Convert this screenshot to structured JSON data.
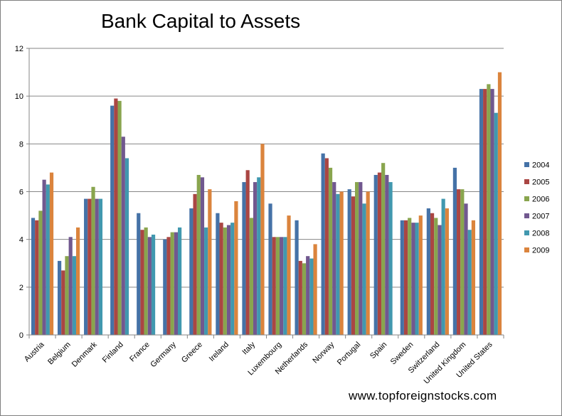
{
  "chart_data": {
    "type": "bar",
    "title": "Bank Capital to Assets",
    "xlabel": "",
    "ylabel": "",
    "ylim": [
      0,
      12
    ],
    "yticks": [
      0,
      2,
      4,
      6,
      8,
      10,
      12
    ],
    "grid": true,
    "legend_position": "right",
    "categories": [
      "Austria",
      "Belgium",
      "Denmark",
      "Finland",
      "France",
      "Germany",
      "Greece",
      "Ireland",
      "Italy",
      "Luxembourg",
      "Netherlands",
      "Norway",
      "Portugal",
      "Spain",
      "Sweden",
      "Switzerland",
      "United Kingdom",
      "United States"
    ],
    "series": [
      {
        "name": "2004",
        "color": "#4572A7",
        "values": [
          4.9,
          3.1,
          5.7,
          9.6,
          5.1,
          4.0,
          5.3,
          5.1,
          6.4,
          5.5,
          4.8,
          7.6,
          6.1,
          6.7,
          4.8,
          5.3,
          7.0,
          10.3
        ]
      },
      {
        "name": "2005",
        "color": "#AA4643",
        "values": [
          4.8,
          2.7,
          5.7,
          9.9,
          4.4,
          4.1,
          5.9,
          4.7,
          6.9,
          4.1,
          3.1,
          7.4,
          5.8,
          6.8,
          4.8,
          5.1,
          6.1,
          10.3
        ]
      },
      {
        "name": "2006",
        "color": "#89A54E",
        "values": [
          5.2,
          3.3,
          6.2,
          9.8,
          4.5,
          4.3,
          6.7,
          4.5,
          4.9,
          4.1,
          3.0,
          7.0,
          6.4,
          7.2,
          4.9,
          4.9,
          6.1,
          10.5
        ]
      },
      {
        "name": "2007",
        "color": "#71588F",
        "values": [
          6.5,
          4.1,
          5.7,
          8.3,
          4.1,
          4.3,
          6.6,
          4.6,
          6.4,
          4.1,
          3.3,
          6.4,
          6.4,
          6.7,
          4.7,
          4.6,
          5.5,
          10.3
        ]
      },
      {
        "name": "2008",
        "color": "#4198AF",
        "values": [
          6.3,
          3.3,
          5.7,
          7.4,
          4.2,
          4.5,
          4.5,
          4.7,
          6.6,
          4.1,
          3.2,
          5.9,
          5.5,
          6.4,
          4.7,
          5.7,
          4.4,
          9.3
        ]
      },
      {
        "name": "2009",
        "color": "#DB843D",
        "values": [
          6.8,
          4.5,
          null,
          null,
          null,
          null,
          6.1,
          5.6,
          8.0,
          5.0,
          3.8,
          6.0,
          6.0,
          null,
          5.0,
          5.3,
          4.8,
          11.0
        ]
      }
    ]
  },
  "watermark": "www.topforeignstocks.com"
}
